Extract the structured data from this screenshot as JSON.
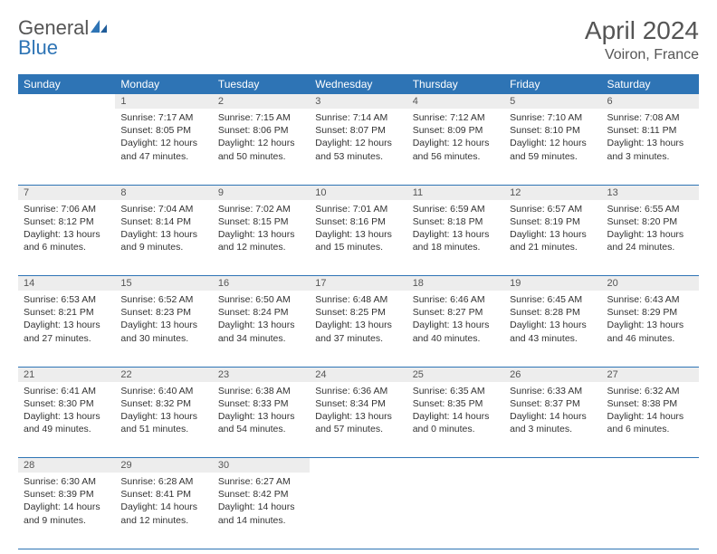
{
  "logo": {
    "text1": "General",
    "text2": "Blue"
  },
  "title": {
    "month": "April 2024",
    "location": "Voiron, France"
  },
  "colors": {
    "header_bg": "#2e74b5",
    "header_fg": "#ffffff",
    "daynum_bg": "#ededed",
    "text": "#333333",
    "rule": "#2e74b5"
  },
  "day_headers": [
    "Sunday",
    "Monday",
    "Tuesday",
    "Wednesday",
    "Thursday",
    "Friday",
    "Saturday"
  ],
  "weeks": [
    [
      null,
      {
        "n": "1",
        "sr": "7:17 AM",
        "ss": "8:05 PM",
        "dl": "12 hours and 47 minutes."
      },
      {
        "n": "2",
        "sr": "7:15 AM",
        "ss": "8:06 PM",
        "dl": "12 hours and 50 minutes."
      },
      {
        "n": "3",
        "sr": "7:14 AM",
        "ss": "8:07 PM",
        "dl": "12 hours and 53 minutes."
      },
      {
        "n": "4",
        "sr": "7:12 AM",
        "ss": "8:09 PM",
        "dl": "12 hours and 56 minutes."
      },
      {
        "n": "5",
        "sr": "7:10 AM",
        "ss": "8:10 PM",
        "dl": "12 hours and 59 minutes."
      },
      {
        "n": "6",
        "sr": "7:08 AM",
        "ss": "8:11 PM",
        "dl": "13 hours and 3 minutes."
      }
    ],
    [
      {
        "n": "7",
        "sr": "7:06 AM",
        "ss": "8:12 PM",
        "dl": "13 hours and 6 minutes."
      },
      {
        "n": "8",
        "sr": "7:04 AM",
        "ss": "8:14 PM",
        "dl": "13 hours and 9 minutes."
      },
      {
        "n": "9",
        "sr": "7:02 AM",
        "ss": "8:15 PM",
        "dl": "13 hours and 12 minutes."
      },
      {
        "n": "10",
        "sr": "7:01 AM",
        "ss": "8:16 PM",
        "dl": "13 hours and 15 minutes."
      },
      {
        "n": "11",
        "sr": "6:59 AM",
        "ss": "8:18 PM",
        "dl": "13 hours and 18 minutes."
      },
      {
        "n": "12",
        "sr": "6:57 AM",
        "ss": "8:19 PM",
        "dl": "13 hours and 21 minutes."
      },
      {
        "n": "13",
        "sr": "6:55 AM",
        "ss": "8:20 PM",
        "dl": "13 hours and 24 minutes."
      }
    ],
    [
      {
        "n": "14",
        "sr": "6:53 AM",
        "ss": "8:21 PM",
        "dl": "13 hours and 27 minutes."
      },
      {
        "n": "15",
        "sr": "6:52 AM",
        "ss": "8:23 PM",
        "dl": "13 hours and 30 minutes."
      },
      {
        "n": "16",
        "sr": "6:50 AM",
        "ss": "8:24 PM",
        "dl": "13 hours and 34 minutes."
      },
      {
        "n": "17",
        "sr": "6:48 AM",
        "ss": "8:25 PM",
        "dl": "13 hours and 37 minutes."
      },
      {
        "n": "18",
        "sr": "6:46 AM",
        "ss": "8:27 PM",
        "dl": "13 hours and 40 minutes."
      },
      {
        "n": "19",
        "sr": "6:45 AM",
        "ss": "8:28 PM",
        "dl": "13 hours and 43 minutes."
      },
      {
        "n": "20",
        "sr": "6:43 AM",
        "ss": "8:29 PM",
        "dl": "13 hours and 46 minutes."
      }
    ],
    [
      {
        "n": "21",
        "sr": "6:41 AM",
        "ss": "8:30 PM",
        "dl": "13 hours and 49 minutes."
      },
      {
        "n": "22",
        "sr": "6:40 AM",
        "ss": "8:32 PM",
        "dl": "13 hours and 51 minutes."
      },
      {
        "n": "23",
        "sr": "6:38 AM",
        "ss": "8:33 PM",
        "dl": "13 hours and 54 minutes."
      },
      {
        "n": "24",
        "sr": "6:36 AM",
        "ss": "8:34 PM",
        "dl": "13 hours and 57 minutes."
      },
      {
        "n": "25",
        "sr": "6:35 AM",
        "ss": "8:35 PM",
        "dl": "14 hours and 0 minutes."
      },
      {
        "n": "26",
        "sr": "6:33 AM",
        "ss": "8:37 PM",
        "dl": "14 hours and 3 minutes."
      },
      {
        "n": "27",
        "sr": "6:32 AM",
        "ss": "8:38 PM",
        "dl": "14 hours and 6 minutes."
      }
    ],
    [
      {
        "n": "28",
        "sr": "6:30 AM",
        "ss": "8:39 PM",
        "dl": "14 hours and 9 minutes."
      },
      {
        "n": "29",
        "sr": "6:28 AM",
        "ss": "8:41 PM",
        "dl": "14 hours and 12 minutes."
      },
      {
        "n": "30",
        "sr": "6:27 AM",
        "ss": "8:42 PM",
        "dl": "14 hours and 14 minutes."
      },
      null,
      null,
      null,
      null
    ]
  ],
  "labels": {
    "sunrise": "Sunrise:",
    "sunset": "Sunset:",
    "daylight": "Daylight:"
  }
}
